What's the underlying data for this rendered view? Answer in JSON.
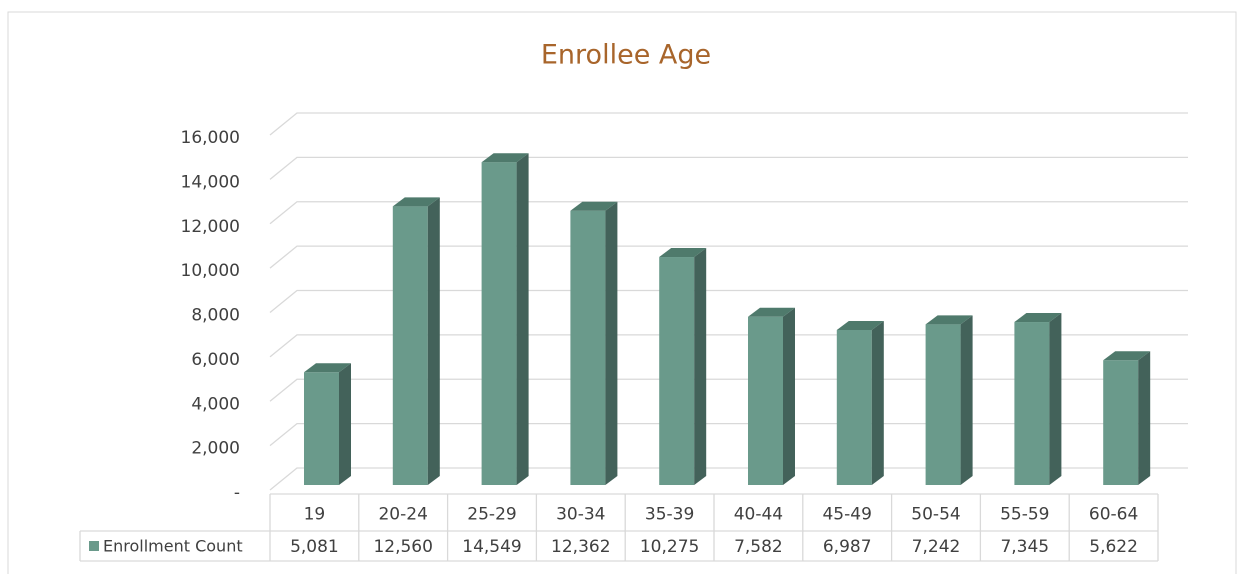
{
  "chart_data": {
    "type": "bar3d",
    "title": "Enrollee Age",
    "categories": [
      "19",
      "20-24",
      "25-29",
      "30-34",
      "35-39",
      "40-44",
      "45-49",
      "50-54",
      "55-59",
      "60-64"
    ],
    "series": [
      {
        "name": "Enrollment Count",
        "color": "#6a9a8b",
        "values": [
          5081,
          12560,
          14549,
          12362,
          10275,
          7582,
          6987,
          7242,
          7345,
          5622
        ],
        "value_labels": [
          "5,081",
          "12,560",
          "14,549",
          "12,362",
          "10,275",
          "7,582",
          "6,987",
          "7,242",
          "7,345",
          "5,622"
        ]
      }
    ],
    "ylim": [
      0,
      16000
    ],
    "yticks": [
      {
        "value": 0,
        "label": "-"
      },
      {
        "value": 2000,
        "label": "2,000"
      },
      {
        "value": 4000,
        "label": "4,000"
      },
      {
        "value": 6000,
        "label": "6,000"
      },
      {
        "value": 8000,
        "label": "8,000"
      },
      {
        "value": 10000,
        "label": "10,000"
      },
      {
        "value": 12000,
        "label": "12,000"
      },
      {
        "value": 14000,
        "label": "14,000"
      },
      {
        "value": 16000,
        "label": "16,000"
      }
    ],
    "grid": true,
    "data_table": true
  }
}
